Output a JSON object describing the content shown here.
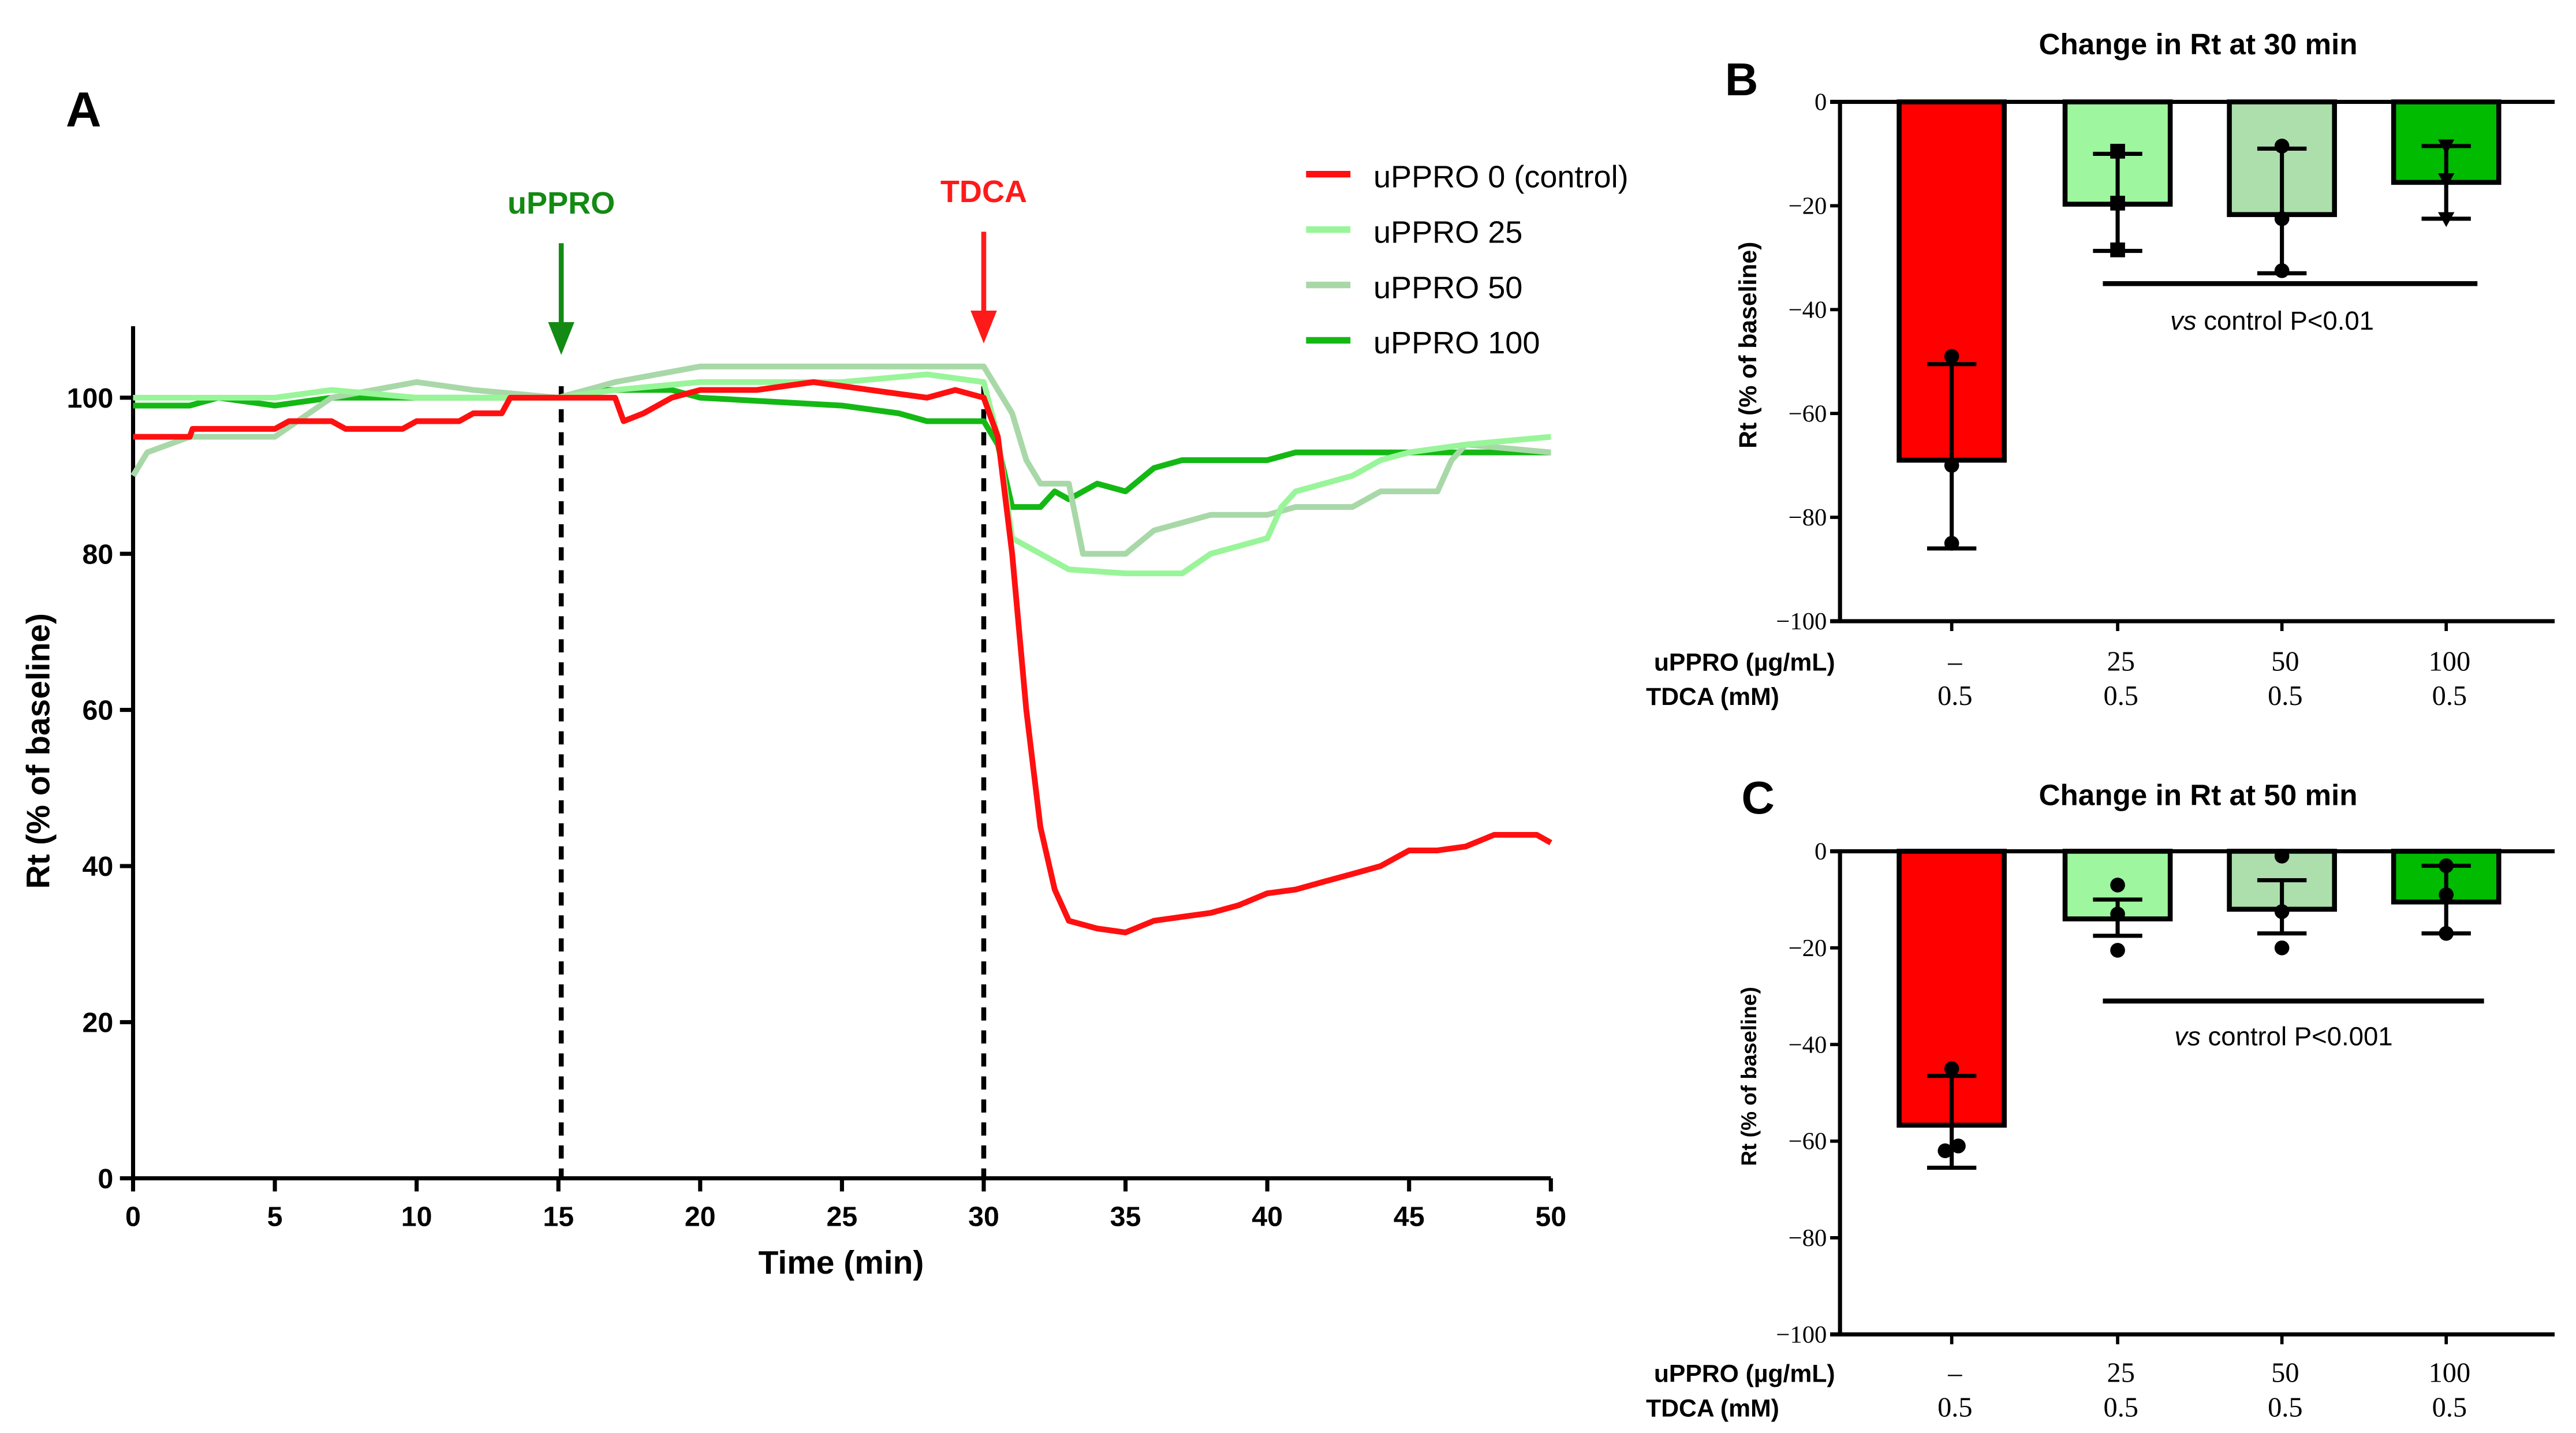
{
  "chart_data": [
    {
      "panel": "A",
      "type": "line",
      "title": "",
      "xlabel": "Time (min)",
      "ylabel": "Rt (% of baseline)",
      "xlim": [
        0,
        50
      ],
      "ylim": [
        0,
        110
      ],
      "xticks": [
        0,
        5,
        10,
        15,
        20,
        25,
        30,
        35,
        40,
        45,
        50
      ],
      "yticks": [
        0,
        20,
        40,
        60,
        80,
        100
      ],
      "legend_position": "top-right",
      "annotations": [
        {
          "text": "uPPRO",
          "x": 15.1,
          "color": "#138a13"
        },
        {
          "text": "TDCA",
          "x": 30,
          "color": "#ff1a1a"
        }
      ],
      "series": [
        {
          "name": "uPPRO 0 (control)",
          "color": "#ff1010",
          "x": [
            0,
            2,
            2.1,
            5,
            5.5,
            7,
            7.5,
            9.5,
            10,
            11.5,
            12,
            13,
            13.3,
            17,
            17.3,
            18,
            19,
            20,
            22,
            24,
            26,
            28,
            29,
            30,
            30.5,
            31,
            31.5,
            32,
            32.5,
            33,
            34,
            35,
            36,
            37,
            38,
            39,
            40,
            41,
            42,
            43,
            44,
            45,
            46,
            47,
            48,
            49.5,
            50
          ],
          "y": [
            95,
            95,
            96,
            96,
            97,
            97,
            96,
            96,
            97,
            97,
            98,
            98,
            100,
            100,
            97,
            98,
            100,
            101,
            101,
            102,
            101,
            100,
            101,
            100,
            95,
            80,
            60,
            45,
            37,
            33,
            32,
            31.5,
            33,
            33.5,
            34,
            35,
            36.5,
            37,
            38,
            39,
            40,
            42,
            42,
            42.5,
            44,
            44,
            43
          ]
        },
        {
          "name": "uPPRO 25",
          "color": "#99f599",
          "x": [
            0,
            5,
            7,
            10,
            15,
            17,
            20,
            25,
            28,
            30,
            30.5,
            31,
            33,
            35,
            37,
            38,
            39,
            40,
            40.5,
            41,
            42,
            43,
            44,
            45,
            47,
            50
          ],
          "y": [
            100,
            100,
            101,
            100,
            100,
            101,
            102,
            102,
            103,
            102,
            95,
            82,
            78,
            77.5,
            77.5,
            80,
            81,
            82,
            86,
            88,
            89,
            90,
            92,
            93,
            94,
            95
          ]
        },
        {
          "name": "uPPRO 50",
          "color": "#a8d8a8",
          "x": [
            0,
            0.5,
            2,
            5,
            7,
            10,
            12,
            15,
            17,
            20,
            22,
            25,
            28,
            30,
            31,
            31.5,
            32,
            33,
            33.5,
            35,
            36,
            38,
            40,
            41,
            43,
            44,
            46,
            46.5,
            47,
            50
          ],
          "y": [
            90,
            93,
            95,
            95,
            100,
            102,
            101,
            100,
            102,
            104,
            104,
            104,
            104,
            104,
            98,
            92,
            89,
            89,
            80,
            80,
            83,
            85,
            85,
            86,
            86,
            88,
            88,
            92,
            94,
            93
          ]
        },
        {
          "name": "uPPRO 100",
          "color": "#14b814",
          "x": [
            0,
            2,
            3,
            5,
            7,
            10,
            15,
            16,
            19,
            20,
            25,
            27,
            28,
            30,
            30.5,
            31,
            32,
            32.5,
            33,
            34,
            35,
            36,
            37,
            40,
            41,
            50
          ],
          "y": [
            99,
            99,
            100,
            99,
            100,
            100,
            100,
            101,
            101,
            100,
            99,
            98,
            97,
            97,
            94,
            86,
            86,
            88,
            87,
            89,
            88,
            91,
            92,
            92,
            93,
            93
          ]
        }
      ]
    },
    {
      "panel": "B",
      "type": "bar",
      "title": "Change in Rt at 30 min",
      "ylabel": "Rt (% of baseline)",
      "ylim": [
        -100,
        0
      ],
      "yticks": [
        0,
        -20,
        -40,
        -60,
        -80,
        -100
      ],
      "row_labels": [
        "uPPRO (µg/mL)",
        "TDCA (mM)"
      ],
      "categories_row1": [
        "–",
        "25",
        "50",
        "100"
      ],
      "categories_row2": [
        "0.5",
        "0.5",
        "0.5",
        "0.5"
      ],
      "colors": [
        "#ff0000",
        "#9ef79e",
        "#acdfac",
        "#00bb00"
      ],
      "values": [
        -69,
        -19.7,
        -21.7,
        -15.5
      ],
      "error_low": [
        -86,
        -28.7,
        -33,
        -22.5
      ],
      "error_high": [
        -50.5,
        -10,
        -9,
        -8.5
      ],
      "points": [
        [
          -49,
          -70,
          -85
        ],
        [
          -9.5,
          -19.5,
          -28.5
        ],
        [
          -8.5,
          -22.5,
          -32.5
        ],
        [
          -8.5,
          -15,
          -22.5
        ]
      ],
      "point_markers": [
        "circle",
        "square",
        "circle",
        "triangle"
      ],
      "significance": {
        "text_italic": "vs",
        "text": " control P<0.01",
        "y": -35
      }
    },
    {
      "panel": "C",
      "type": "bar",
      "title": "Change in Rt at 50  min",
      "ylabel": "Rt (% of baseline)",
      "ylim": [
        -100,
        0
      ],
      "yticks": [
        0,
        -20,
        -40,
        -60,
        -80,
        -100
      ],
      "row_labels": [
        "uPPRO (µg/mL)",
        "TDCA (mM)"
      ],
      "categories_row1": [
        "–",
        "25",
        "50",
        "100"
      ],
      "categories_row2": [
        "0.5",
        "0.5",
        "0.5",
        "0.5"
      ],
      "colors": [
        "#ff0000",
        "#9ef79e",
        "#acdfac",
        "#00bb00"
      ],
      "values": [
        -56.7,
        -14,
        -12,
        -10.5
      ],
      "error_low": [
        -65.5,
        -17.5,
        -17,
        -17
      ],
      "error_high": [
        -46.5,
        -10,
        -6,
        -3
      ],
      "points": [
        [
          -45,
          -61,
          -62
        ],
        [
          -7,
          -13,
          -20.5
        ],
        [
          -1,
          -12.5,
          -20
        ],
        [
          -3,
          -9,
          -17
        ]
      ],
      "point_markers": [
        "circle",
        "circle",
        "circle",
        "circle"
      ],
      "significance": {
        "text_italic": "vs",
        "text": " control P<0.001",
        "y": -31
      }
    }
  ]
}
